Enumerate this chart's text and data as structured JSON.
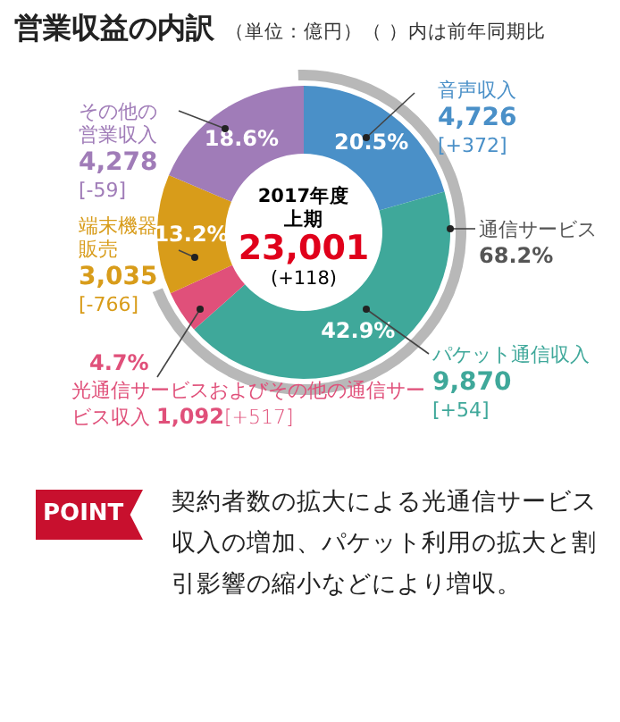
{
  "chart_data": {
    "type": "donut",
    "title": "営業収益の内訳",
    "subtitle": "（単位：億円）（ ）内は前年同期比",
    "categories": [
      "音声収入",
      "パケット通信収入",
      "光通信サービスおよびその他の通信サービス収入",
      "端末機器販売",
      "その他の営業収入"
    ],
    "values": [
      20.5,
      42.9,
      4.7,
      13.2,
      18.6
    ],
    "colors": [
      "#4a90c8",
      "#3fa89a",
      "#e0507a",
      "#d89c1a",
      "#a07cb8"
    ],
    "value_labels": [
      "20.5%",
      "42.9%",
      "4.7%",
      "13.2%",
      "18.6%"
    ],
    "annotations": [
      "2017年度",
      "上期",
      "23,001",
      "(+118)",
      "通信サービス",
      "68.2%",
      "4,726",
      "9,870",
      "1,092",
      "3,035",
      "4,278",
      "[+372]",
      "[+54]",
      "[+517]",
      "[-766]",
      "[-59]",
      "POINT",
      "契約者数の拡大による光通信サービス収入の増加、パケット利用の拡大と割引影響の縮小などにより増収。"
    ]
  }
}
